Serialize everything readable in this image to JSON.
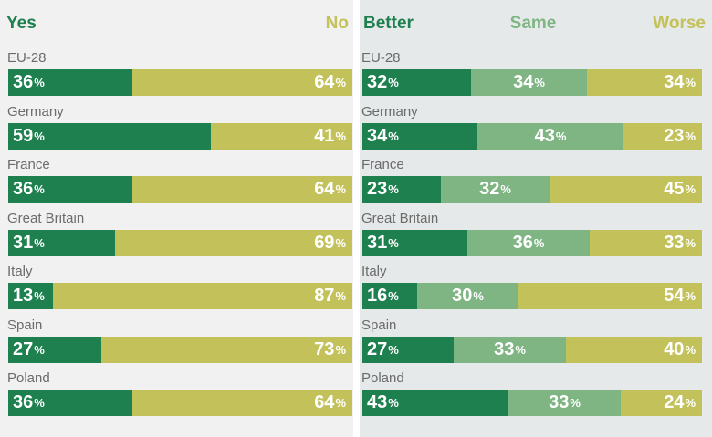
{
  "colors": {
    "dark_green": "#1e7f4f",
    "light_green": "#7fb583",
    "olive": "#c2c15a",
    "country_text": "#6b6b6b"
  },
  "chart_data": [
    {
      "type": "bar",
      "stacked": true,
      "orientation": "horizontal",
      "categories": [
        "EU-28",
        "Germany",
        "France",
        "Great Britain",
        "Italy",
        "Spain",
        "Poland"
      ],
      "series": [
        {
          "name": "Yes",
          "color": "#1e7f4f",
          "values": [
            36,
            59,
            36,
            31,
            13,
            27,
            36
          ]
        },
        {
          "name": "No",
          "color": "#c2c15a",
          "values": [
            64,
            41,
            64,
            69,
            87,
            73,
            64
          ]
        }
      ],
      "unit": "%",
      "xlim": [
        0,
        100
      ],
      "legend_position": "top"
    },
    {
      "type": "bar",
      "stacked": true,
      "orientation": "horizontal",
      "categories": [
        "EU-28",
        "Germany",
        "France",
        "Great Britain",
        "Italy",
        "Spain",
        "Poland"
      ],
      "series": [
        {
          "name": "Better",
          "color": "#1e7f4f",
          "values": [
            32,
            34,
            23,
            31,
            16,
            27,
            43
          ]
        },
        {
          "name": "Same",
          "color": "#7fb583",
          "values": [
            34,
            43,
            32,
            36,
            30,
            33,
            33
          ]
        },
        {
          "name": "Worse",
          "color": "#c2c15a",
          "values": [
            34,
            23,
            45,
            33,
            54,
            40,
            24
          ]
        }
      ],
      "unit": "%",
      "xlim": [
        0,
        100
      ],
      "legend_position": "top"
    }
  ]
}
